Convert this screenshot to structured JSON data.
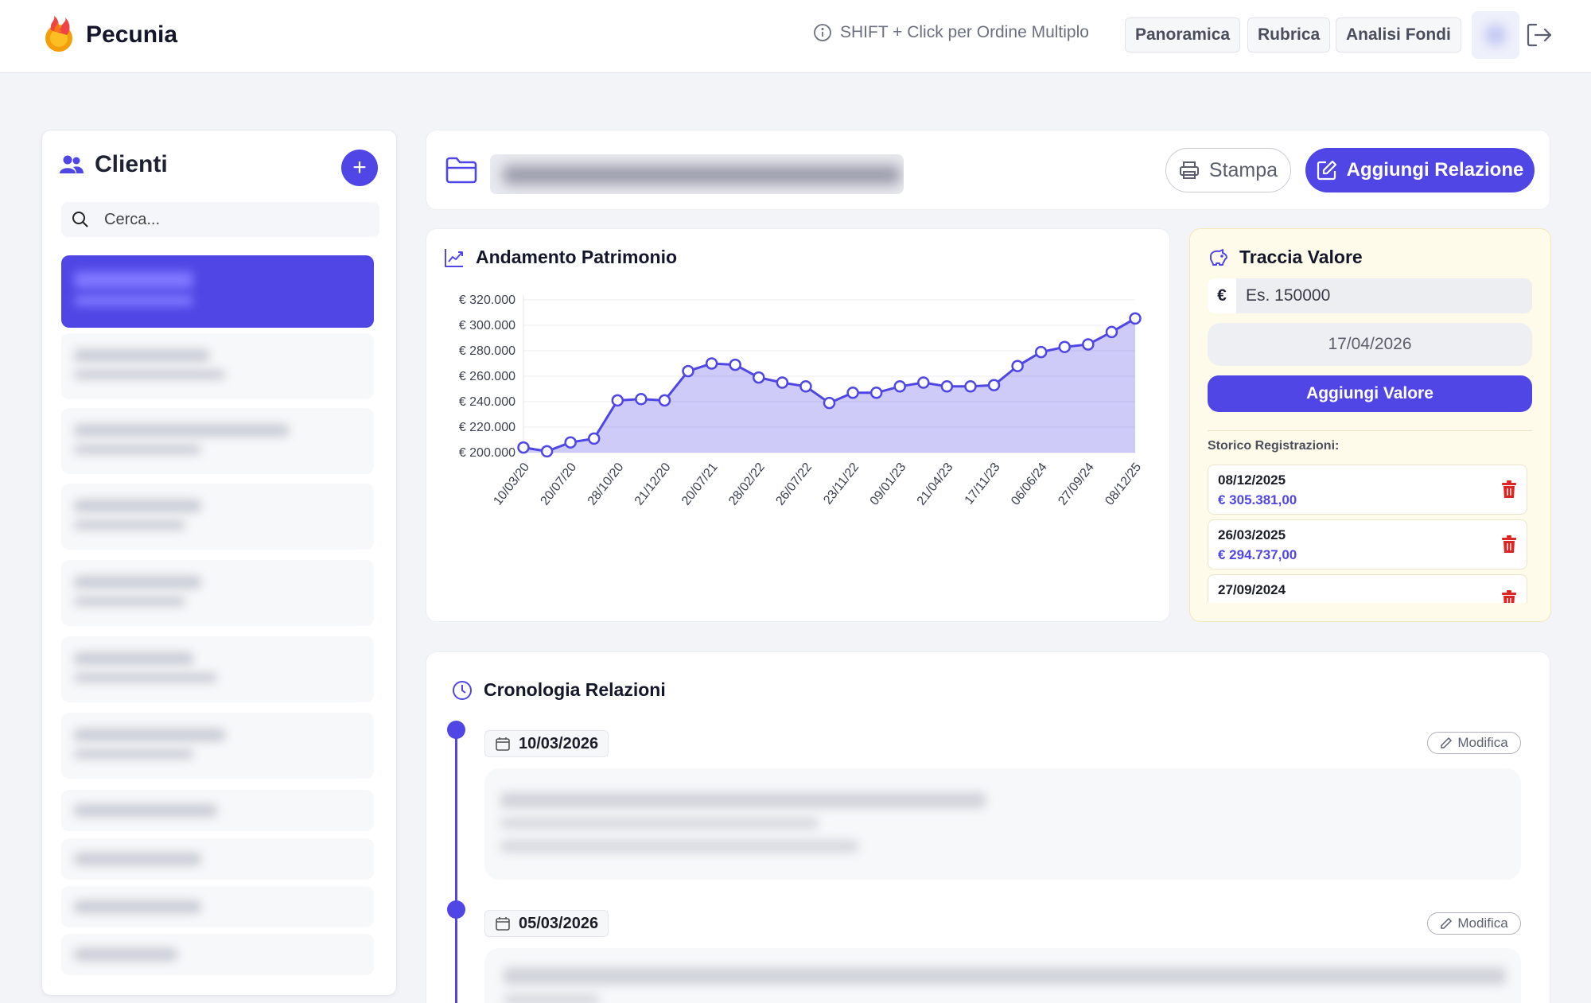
{
  "app": {
    "name": "Pecunia",
    "hint": "SHIFT + Click per Ordine Multiplo",
    "nav": [
      "Panoramica",
      "Rubrica",
      "Analisi Fondi"
    ]
  },
  "clients": {
    "title": "Clienti",
    "add_label": "+",
    "search_placeholder": "Cerca..."
  },
  "report": {
    "print_label": "Stampa",
    "add_relation_label": "Aggiungi Relazione"
  },
  "chart": {
    "title": "Andamento Patrimonio",
    "accent": "#4f46e5"
  },
  "chart_data": {
    "type": "area",
    "title": "Andamento Patrimonio",
    "xlabel": "",
    "ylabel": "",
    "ylim": [
      200000,
      320000
    ],
    "yticks": [
      "€ 320.000",
      "€ 300.000",
      "€ 280.000",
      "€ 260.000",
      "€ 240.000",
      "€ 220.000",
      "€ 200.000"
    ],
    "xticks": [
      "10/03/20",
      "20/07/20",
      "28/10/20",
      "21/12/20",
      "20/07/21",
      "28/02/22",
      "26/07/22",
      "23/11/22",
      "09/01/23",
      "21/04/23",
      "17/11/23",
      "06/06/24",
      "27/09/24",
      "08/12/25"
    ],
    "grid": true,
    "values": [
      204000,
      201000,
      208000,
      211000,
      241000,
      242000,
      241000,
      264000,
      270000,
      269000,
      259000,
      255000,
      252000,
      239000,
      247000,
      247000,
      252000,
      255000,
      252000,
      252000,
      253000,
      268000,
      279000,
      283000,
      285000,
      294737,
      305381
    ]
  },
  "tracker": {
    "title": "Traccia Valore",
    "currency": "€",
    "amount_placeholder": "Es. 150000",
    "date_value": "17/04/2026",
    "add_label": "Aggiungi Valore",
    "history_label": "Storico Registrazioni:",
    "history": [
      {
        "date": "08/12/2025",
        "amount": "€ 305.381,00"
      },
      {
        "date": "26/03/2025",
        "amount": "€ 294.737,00"
      },
      {
        "date": "27/09/2024",
        "amount": ""
      }
    ]
  },
  "timeline": {
    "title": "Cronologia Relazioni",
    "modify_label": "Modifica",
    "entries": [
      {
        "date": "10/03/2026"
      },
      {
        "date": "05/03/2026"
      }
    ]
  }
}
